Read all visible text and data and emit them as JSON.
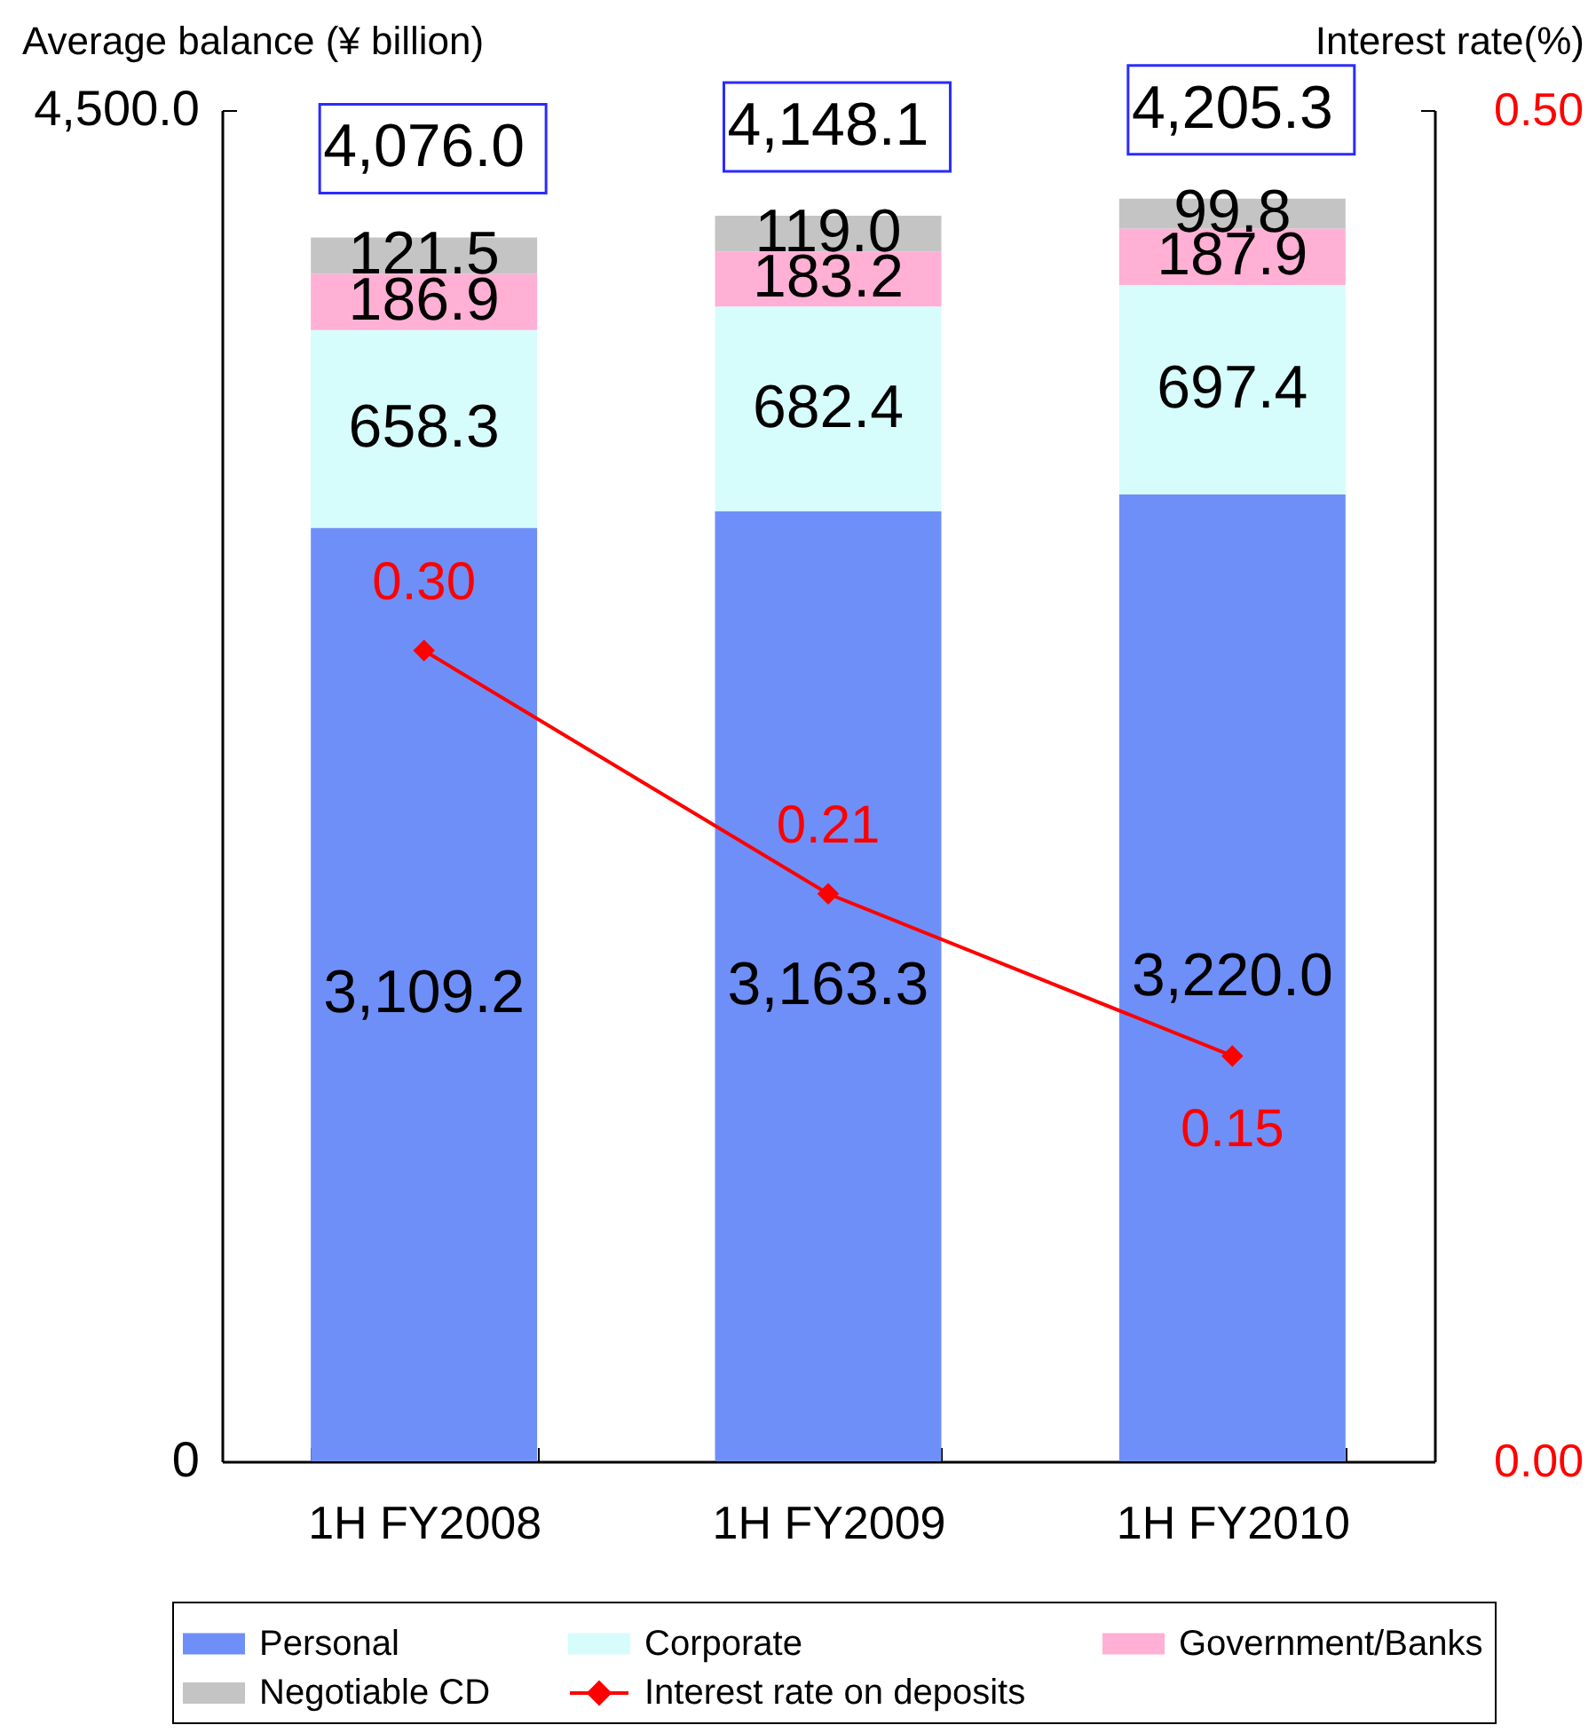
{
  "chart_data": {
    "type": "bar",
    "stacked": true,
    "categories": [
      "1H FY2008",
      "1H FY2009",
      "1H FY2010"
    ],
    "ylabel": "Average balance (¥ billion)",
    "y2label": "Interest rate(%)",
    "ylim": [
      0,
      4500
    ],
    "yticks": [
      0,
      {
        "value": 4500,
        "label": "4,500.0"
      }
    ],
    "y2lim": [
      0,
      0.5
    ],
    "y2ticks": [
      {
        "value": 0,
        "label": "0.00"
      },
      {
        "value": 0.5,
        "label": "0.50"
      }
    ],
    "series": [
      {
        "name": "Personal",
        "color": "#6f8ff8",
        "values": [
          3109.2,
          3163.3,
          3220.0
        ],
        "value_labels": [
          "3,109.2",
          "3,163.3",
          "3,220.0"
        ]
      },
      {
        "name": "Corporate",
        "color": "#d6fcfc",
        "values": [
          658.3,
          682.4,
          697.4
        ],
        "value_labels": [
          "658.3",
          "682.4",
          "697.4"
        ]
      },
      {
        "name": "Government/Banks",
        "color": "#ffb0d4",
        "values": [
          186.9,
          183.2,
          187.9
        ],
        "value_labels": [
          "186.9",
          "183.2",
          "187.9"
        ]
      },
      {
        "name": "Negotiable CD",
        "color": "#c4c4c4",
        "values": [
          121.5,
          119.0,
          99.8
        ],
        "value_labels": [
          "121.5",
          "119.0",
          "99.8"
        ]
      },
      {
        "name": "Interest rate on deposits",
        "type": "line",
        "axis": "y2",
        "color": "#ff0000",
        "values": [
          0.3,
          0.21,
          0.15
        ],
        "value_labels": [
          "0.30",
          "0.21",
          "0.15"
        ]
      }
    ],
    "totals": [
      "4,076.0",
      "4,148.1",
      "4,205.3"
    ],
    "legend": "bottom",
    "marker": "diamond",
    "line_style": "solid",
    "grid": false
  }
}
